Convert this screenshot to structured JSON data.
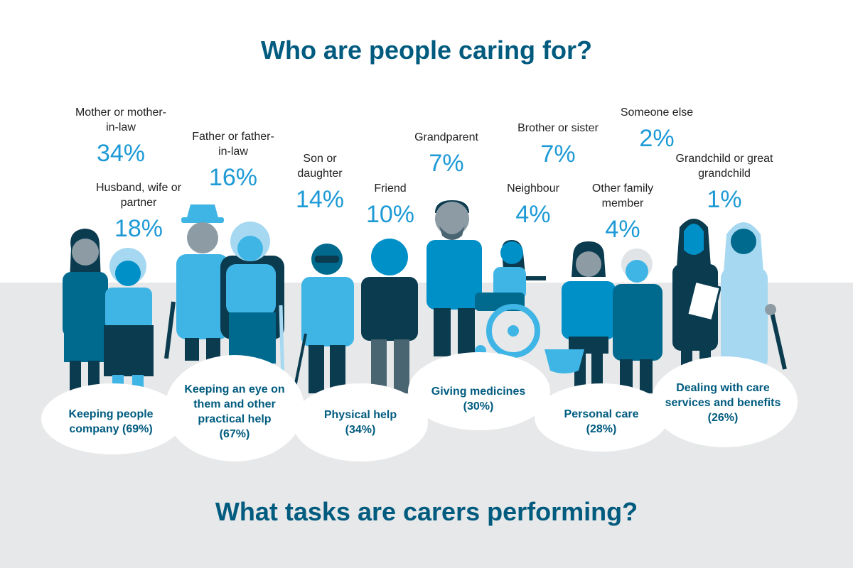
{
  "title_top": "Who are people caring for?",
  "title_bottom": "What tasks are carers performing?",
  "relations": [
    {
      "label": "Mother or mother-in-law",
      "pct": "34%"
    },
    {
      "label": "Husband, wife or partner",
      "pct": "18%"
    },
    {
      "label": "Father or father-in-law",
      "pct": "16%"
    },
    {
      "label": "Son or daughter",
      "pct": "14%"
    },
    {
      "label": "Friend",
      "pct": "10%"
    },
    {
      "label": "Grandparent",
      "pct": "7%"
    },
    {
      "label": "Neighbour",
      "pct": "4%"
    },
    {
      "label": "Brother or sister",
      "pct": "7%"
    },
    {
      "label": "Other family member",
      "pct": "4%"
    },
    {
      "label": "Someone else",
      "pct": "2%"
    },
    {
      "label": "Grandchild or great grandchild",
      "pct": "1%"
    }
  ],
  "tasks": [
    {
      "label": "Keeping people company (69%)"
    },
    {
      "label": "Keeping an eye on them and other practical help (67%)"
    },
    {
      "label": "Physical help (34%)"
    },
    {
      "label": "Giving medicines (30%)"
    },
    {
      "label": "Personal care (28%)"
    },
    {
      "label": "Dealing with care services and benefits (26%)"
    }
  ],
  "colors": {
    "title": "#005b7f",
    "percent": "#1d9ad6",
    "ground": "#e7e8e9",
    "dark_navy": "#0a3b4f",
    "teal": "#006a8e",
    "mid_blue": "#0090c8",
    "light_blue": "#3fb5e6",
    "pale_blue": "#a6d9f1",
    "grey": "#8c9ba4"
  }
}
